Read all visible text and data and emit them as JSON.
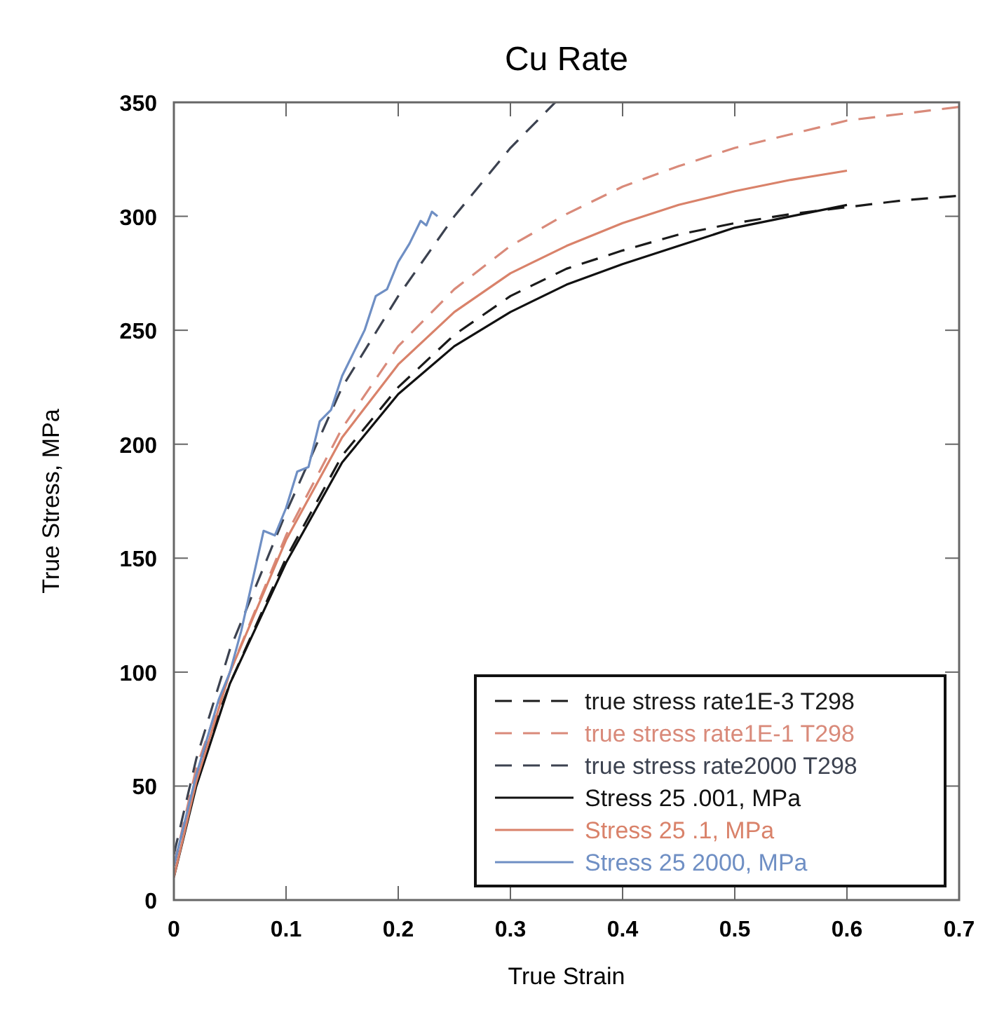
{
  "chart_data": {
    "type": "line",
    "title": "Cu Rate",
    "xlabel": "True Strain",
    "ylabel": "True Stress, MPa",
    "xlim": [
      0,
      0.7
    ],
    "ylim": [
      0,
      350
    ],
    "xticks": [
      0,
      0.1,
      0.2,
      0.3,
      0.4,
      0.5,
      0.6,
      0.7
    ],
    "yticks": [
      0,
      50,
      100,
      150,
      200,
      250,
      300,
      350
    ],
    "grid": false,
    "legend": "bottom right",
    "series": [
      {
        "name": "true stress rate1E-3 T298",
        "color": "#1a1a1a",
        "line_style": "dashed",
        "x": [
          0,
          0.02,
          0.05,
          0.1,
          0.15,
          0.2,
          0.25,
          0.3,
          0.35,
          0.4,
          0.45,
          0.5,
          0.55,
          0.6,
          0.65,
          0.7
        ],
        "values": [
          15,
          55,
          95,
          150,
          195,
          225,
          248,
          265,
          277,
          285,
          292,
          297,
          301,
          304,
          307,
          309
        ]
      },
      {
        "name": "true stress rate1E-1 T298",
        "color": "#d98a7a",
        "line_style": "dashed",
        "x": [
          0,
          0.02,
          0.05,
          0.1,
          0.15,
          0.2,
          0.25,
          0.3,
          0.35,
          0.4,
          0.45,
          0.5,
          0.55,
          0.6,
          0.65,
          0.7
        ],
        "values": [
          15,
          58,
          100,
          160,
          207,
          243,
          268,
          287,
          301,
          313,
          322,
          330,
          336,
          342,
          345,
          348
        ]
      },
      {
        "name": "true stress rate2000 T298",
        "color": "#3c4250",
        "line_style": "dashed",
        "x": [
          0,
          0.02,
          0.05,
          0.1,
          0.15,
          0.2,
          0.25,
          0.3,
          0.34
        ],
        "values": [
          20,
          62,
          110,
          170,
          225,
          265,
          300,
          330,
          350
        ]
      },
      {
        "name": "Stress 25 .001, MPa",
        "color": "#111111",
        "line_style": "solid",
        "x": [
          0,
          0.02,
          0.05,
          0.1,
          0.15,
          0.2,
          0.25,
          0.3,
          0.35,
          0.4,
          0.45,
          0.5,
          0.55,
          0.6
        ],
        "values": [
          10,
          50,
          95,
          148,
          192,
          222,
          243,
          258,
          270,
          279,
          287,
          295,
          300,
          305
        ]
      },
      {
        "name": "Stress 25 .1, MPa",
        "color": "#d9826a",
        "line_style": "solid",
        "x": [
          0,
          0.02,
          0.05,
          0.1,
          0.15,
          0.2,
          0.25,
          0.3,
          0.35,
          0.4,
          0.45,
          0.5,
          0.55,
          0.6
        ],
        "values": [
          10,
          52,
          100,
          158,
          203,
          235,
          258,
          275,
          287,
          297,
          305,
          311,
          316,
          320
        ]
      },
      {
        "name": "Stress 25 2000, MPa",
        "color": "#6f8fc4",
        "line_style": "solid",
        "x": [
          0,
          0.02,
          0.04,
          0.05,
          0.06,
          0.07,
          0.08,
          0.09,
          0.1,
          0.11,
          0.12,
          0.13,
          0.14,
          0.15,
          0.16,
          0.17,
          0.18,
          0.19,
          0.2,
          0.21,
          0.22,
          0.225,
          0.23,
          0.235
        ],
        "values": [
          15,
          55,
          88,
          100,
          118,
          140,
          162,
          160,
          172,
          188,
          190,
          210,
          215,
          230,
          240,
          250,
          265,
          268,
          280,
          288,
          298,
          296,
          302,
          300
        ]
      }
    ]
  }
}
